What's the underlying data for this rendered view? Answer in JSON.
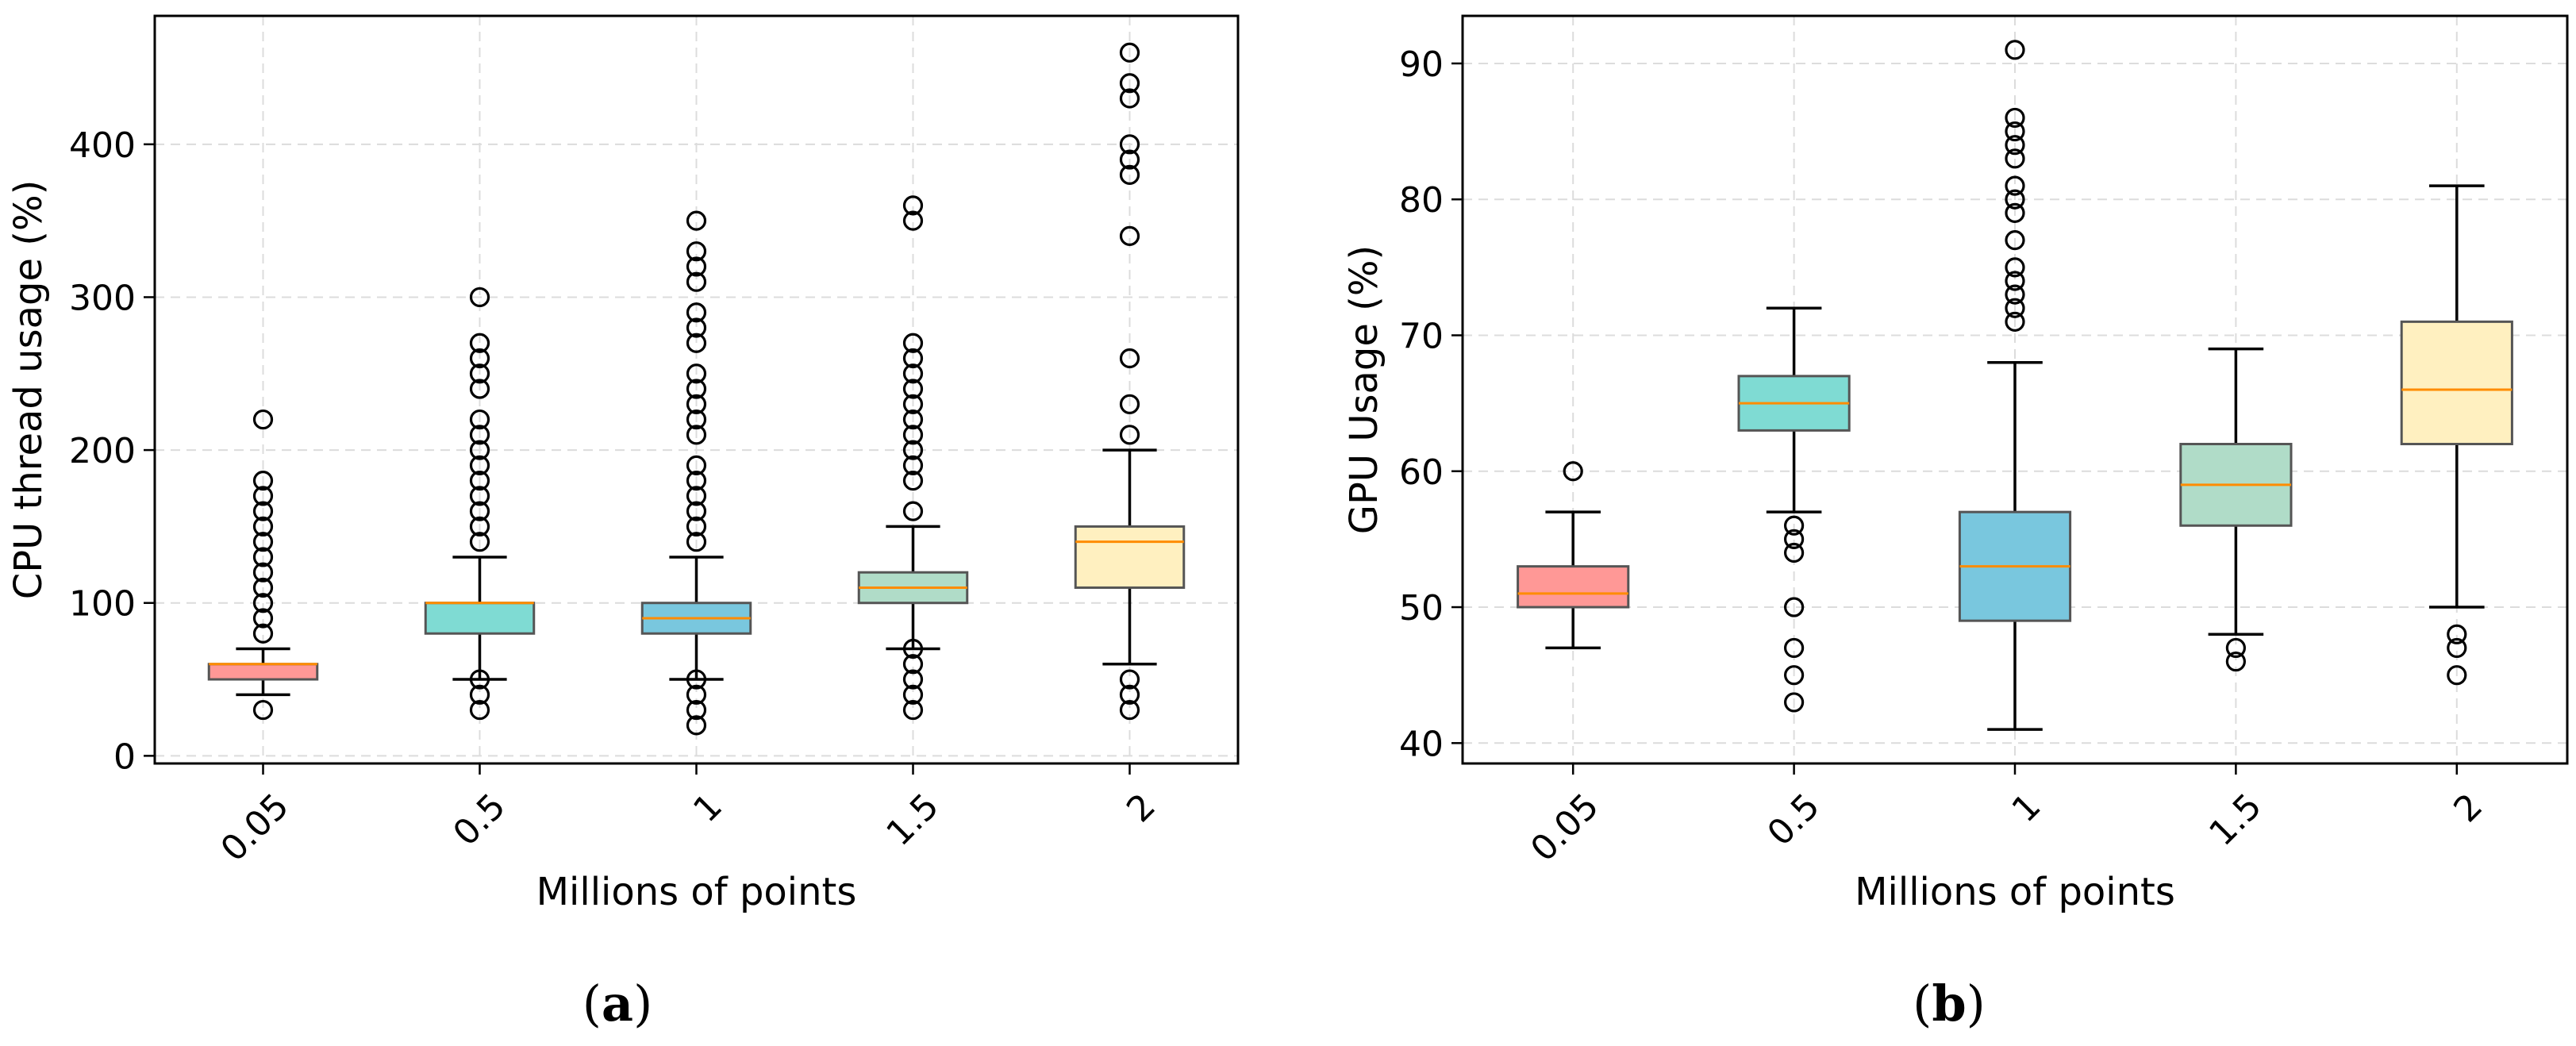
{
  "chart_data": [
    {
      "type": "box",
      "panel_label": "a",
      "xlabel": "Millions of points",
      "ylabel": "CPU thread usage (%)",
      "ylim": [
        -5,
        484
      ],
      "yticks": [
        0,
        100,
        200,
        300,
        400
      ],
      "grid": true,
      "categories": [
        "0.05",
        "0.5",
        "1",
        "1.5",
        "2"
      ],
      "colors": [
        "#ff9896",
        "#7fdbd3",
        "#79c7de",
        "#b0dcc8",
        "#fff0c0"
      ],
      "median_color": "#ff8c00",
      "boxes": [
        {
          "whislo": 40,
          "q1": 50,
          "med": 60,
          "q3": 60,
          "whishi": 70,
          "fliers": [
            30,
            80,
            90,
            100,
            110,
            120,
            130,
            140,
            150,
            160,
            170,
            180,
            220
          ]
        },
        {
          "whislo": 50,
          "q1": 80,
          "med": 100,
          "q3": 100,
          "whishi": 130,
          "fliers": [
            30,
            40,
            50,
            140,
            150,
            160,
            170,
            180,
            190,
            200,
            210,
            220,
            240,
            250,
            260,
            270,
            300
          ]
        },
        {
          "whislo": 50,
          "q1": 80,
          "med": 90,
          "q3": 100,
          "whishi": 130,
          "fliers": [
            20,
            30,
            40,
            50,
            140,
            150,
            160,
            170,
            180,
            190,
            210,
            220,
            230,
            240,
            250,
            270,
            280,
            290,
            310,
            320,
            330,
            350
          ]
        },
        {
          "whislo": 70,
          "q1": 100,
          "med": 110,
          "q3": 120,
          "whishi": 150,
          "fliers": [
            30,
            40,
            50,
            60,
            70,
            160,
            180,
            190,
            200,
            210,
            220,
            230,
            240,
            250,
            260,
            270,
            350,
            360
          ]
        },
        {
          "whislo": 60,
          "q1": 110,
          "med": 140,
          "q3": 150,
          "whishi": 200,
          "fliers": [
            30,
            40,
            50,
            210,
            230,
            260,
            340,
            380,
            390,
            400,
            430,
            440,
            460
          ]
        }
      ]
    },
    {
      "type": "box",
      "panel_label": "b",
      "xlabel": "Millions of points",
      "ylabel": "GPU Usage (%)",
      "ylim": [
        38.5,
        93.5
      ],
      "yticks": [
        40,
        50,
        60,
        70,
        80,
        90
      ],
      "grid": true,
      "categories": [
        "0.05",
        "0.5",
        "1",
        "1.5",
        "2"
      ],
      "colors": [
        "#ff9896",
        "#7fdbd3",
        "#79c7de",
        "#b0dcc8",
        "#fff0c0"
      ],
      "median_color": "#ff8c00",
      "boxes": [
        {
          "whislo": 47,
          "q1": 50,
          "med": 51,
          "q3": 53,
          "whishi": 57,
          "fliers": [
            60
          ]
        },
        {
          "whislo": 57,
          "q1": 63,
          "med": 65,
          "q3": 67,
          "whishi": 72,
          "fliers": [
            43,
            45,
            47,
            50,
            54,
            55,
            56
          ]
        },
        {
          "whislo": 41,
          "q1": 49,
          "med": 53,
          "q3": 57,
          "whishi": 68,
          "fliers": [
            71,
            72,
            73,
            74,
            75,
            77,
            79,
            80,
            81,
            83,
            84,
            85,
            86,
            91
          ]
        },
        {
          "whislo": 48,
          "q1": 56,
          "med": 59,
          "q3": 62,
          "whishi": 69,
          "fliers": [
            46,
            47
          ]
        },
        {
          "whislo": 50,
          "q1": 62,
          "med": 66,
          "q3": 71,
          "whishi": 81,
          "fliers": [
            45,
            47,
            48
          ]
        }
      ]
    }
  ]
}
